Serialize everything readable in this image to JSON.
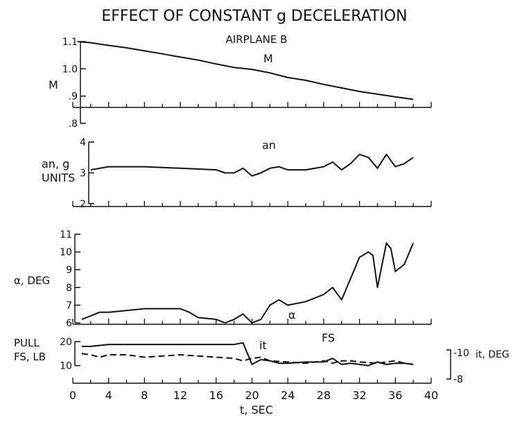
{
  "title": "EFFECT OF CONSTANT g DECELERATION",
  "subtitle": "AIRPLANE B",
  "chart_data": [
    {
      "type": "line",
      "ylabel": "M",
      "ylim": [
        0.8,
        1.1
      ],
      "yticks": [
        ".8",
        ".9",
        "1.0",
        "1.1"
      ],
      "annotation": "M",
      "series": [
        {
          "name": "M",
          "style": "solid",
          "x": [
            0.5,
            2,
            4,
            6,
            8,
            10,
            12,
            14,
            16,
            18,
            20,
            22,
            24,
            26,
            28,
            30,
            32,
            34,
            36,
            38
          ],
          "y": [
            1.1,
            1.096,
            1.086,
            1.077,
            1.066,
            1.055,
            1.043,
            1.032,
            1.018,
            1.005,
            0.998,
            0.985,
            0.968,
            0.958,
            0.943,
            0.93,
            0.917,
            0.907,
            0.897,
            0.888
          ]
        }
      ]
    },
    {
      "type": "line",
      "ylabel": [
        "an, g",
        "UNITS"
      ],
      "ylim": [
        2,
        4
      ],
      "yticks": [
        "2",
        "3",
        "4"
      ],
      "annotation": "an",
      "series": [
        {
          "name": "an",
          "style": "solid",
          "x": [
            2,
            4,
            8,
            12,
            16,
            17,
            18,
            19,
            20,
            21,
            22,
            23,
            24,
            26,
            28,
            29,
            30,
            31,
            32,
            33,
            34,
            35,
            36,
            37,
            38
          ],
          "y": [
            3.1,
            3.2,
            3.2,
            3.15,
            3.1,
            3.0,
            3.0,
            3.15,
            2.9,
            3.0,
            3.15,
            3.2,
            3.1,
            3.1,
            3.2,
            3.35,
            3.1,
            3.3,
            3.6,
            3.5,
            3.15,
            3.6,
            3.2,
            3.3,
            3.5
          ]
        }
      ]
    },
    {
      "type": "line",
      "ylabel": "α, DEG",
      "ylim": [
        6,
        11
      ],
      "yticks": [
        "6",
        "7",
        "8",
        "9",
        "10",
        "11"
      ],
      "annotation": "α",
      "series": [
        {
          "name": "α",
          "style": "solid",
          "x": [
            1,
            2,
            3,
            4,
            6,
            8,
            10,
            12,
            13,
            14,
            16,
            17,
            18,
            19,
            20,
            21,
            22,
            23,
            24,
            26,
            28,
            29,
            30,
            31,
            32,
            33,
            33.5,
            34,
            35,
            35.5,
            36,
            37,
            38
          ],
          "y": [
            6.2,
            6.4,
            6.6,
            6.6,
            6.7,
            6.8,
            6.8,
            6.8,
            6.6,
            6.3,
            6.2,
            6.0,
            6.2,
            6.5,
            6.0,
            6.2,
            7.0,
            7.3,
            7.0,
            7.2,
            7.6,
            8.0,
            7.3,
            8.5,
            9.7,
            10.0,
            9.8,
            8.0,
            10.5,
            10.2,
            8.9,
            9.3,
            10.5
          ]
        }
      ]
    },
    {
      "type": "line",
      "ylabel": [
        "PULL",
        "FS, LB"
      ],
      "ylim": [
        5,
        22
      ],
      "yticks": [
        "10",
        "20"
      ],
      "right_axis": {
        "label": "it, DEG",
        "ticks": [
          "-10",
          "-8"
        ]
      },
      "xlabel": "t, SEC",
      "xlim": [
        0,
        40
      ],
      "xticks": [
        "0",
        "4",
        "8",
        "12",
        "16",
        "20",
        "24",
        "28",
        "32",
        "36",
        "40"
      ],
      "annotations": [
        "it",
        "FS"
      ],
      "series": [
        {
          "name": "it",
          "style": "solid",
          "x": [
            1,
            2,
            4,
            8,
            12,
            16,
            18,
            19,
            19.5,
            20,
            21,
            22,
            23,
            24,
            26,
            28,
            29,
            30,
            31,
            32,
            33,
            34,
            35,
            36,
            37,
            38
          ],
          "y": [
            18,
            18,
            18.8,
            18.8,
            18.8,
            18.8,
            18.8,
            19.5,
            15,
            10.5,
            12.5,
            12,
            11,
            11,
            11.5,
            11.5,
            13,
            10.5,
            11,
            10.5,
            10,
            11.5,
            10.5,
            11,
            11,
            10.5
          ]
        },
        {
          "name": "FS",
          "style": "dashed",
          "x": [
            1,
            2,
            3,
            4,
            6,
            8,
            10,
            12,
            14,
            16,
            18,
            19,
            20,
            21,
            22,
            24,
            26,
            28,
            29,
            30,
            31,
            32,
            34,
            36,
            37,
            38
          ],
          "y": [
            15,
            14.5,
            13.5,
            14.5,
            14.5,
            13.5,
            14,
            14.5,
            14,
            13.5,
            13,
            12,
            13,
            13.5,
            12,
            11.5,
            11,
            12,
            11,
            12,
            12,
            11.5,
            11,
            12,
            11,
            10.5
          ]
        }
      ]
    }
  ]
}
